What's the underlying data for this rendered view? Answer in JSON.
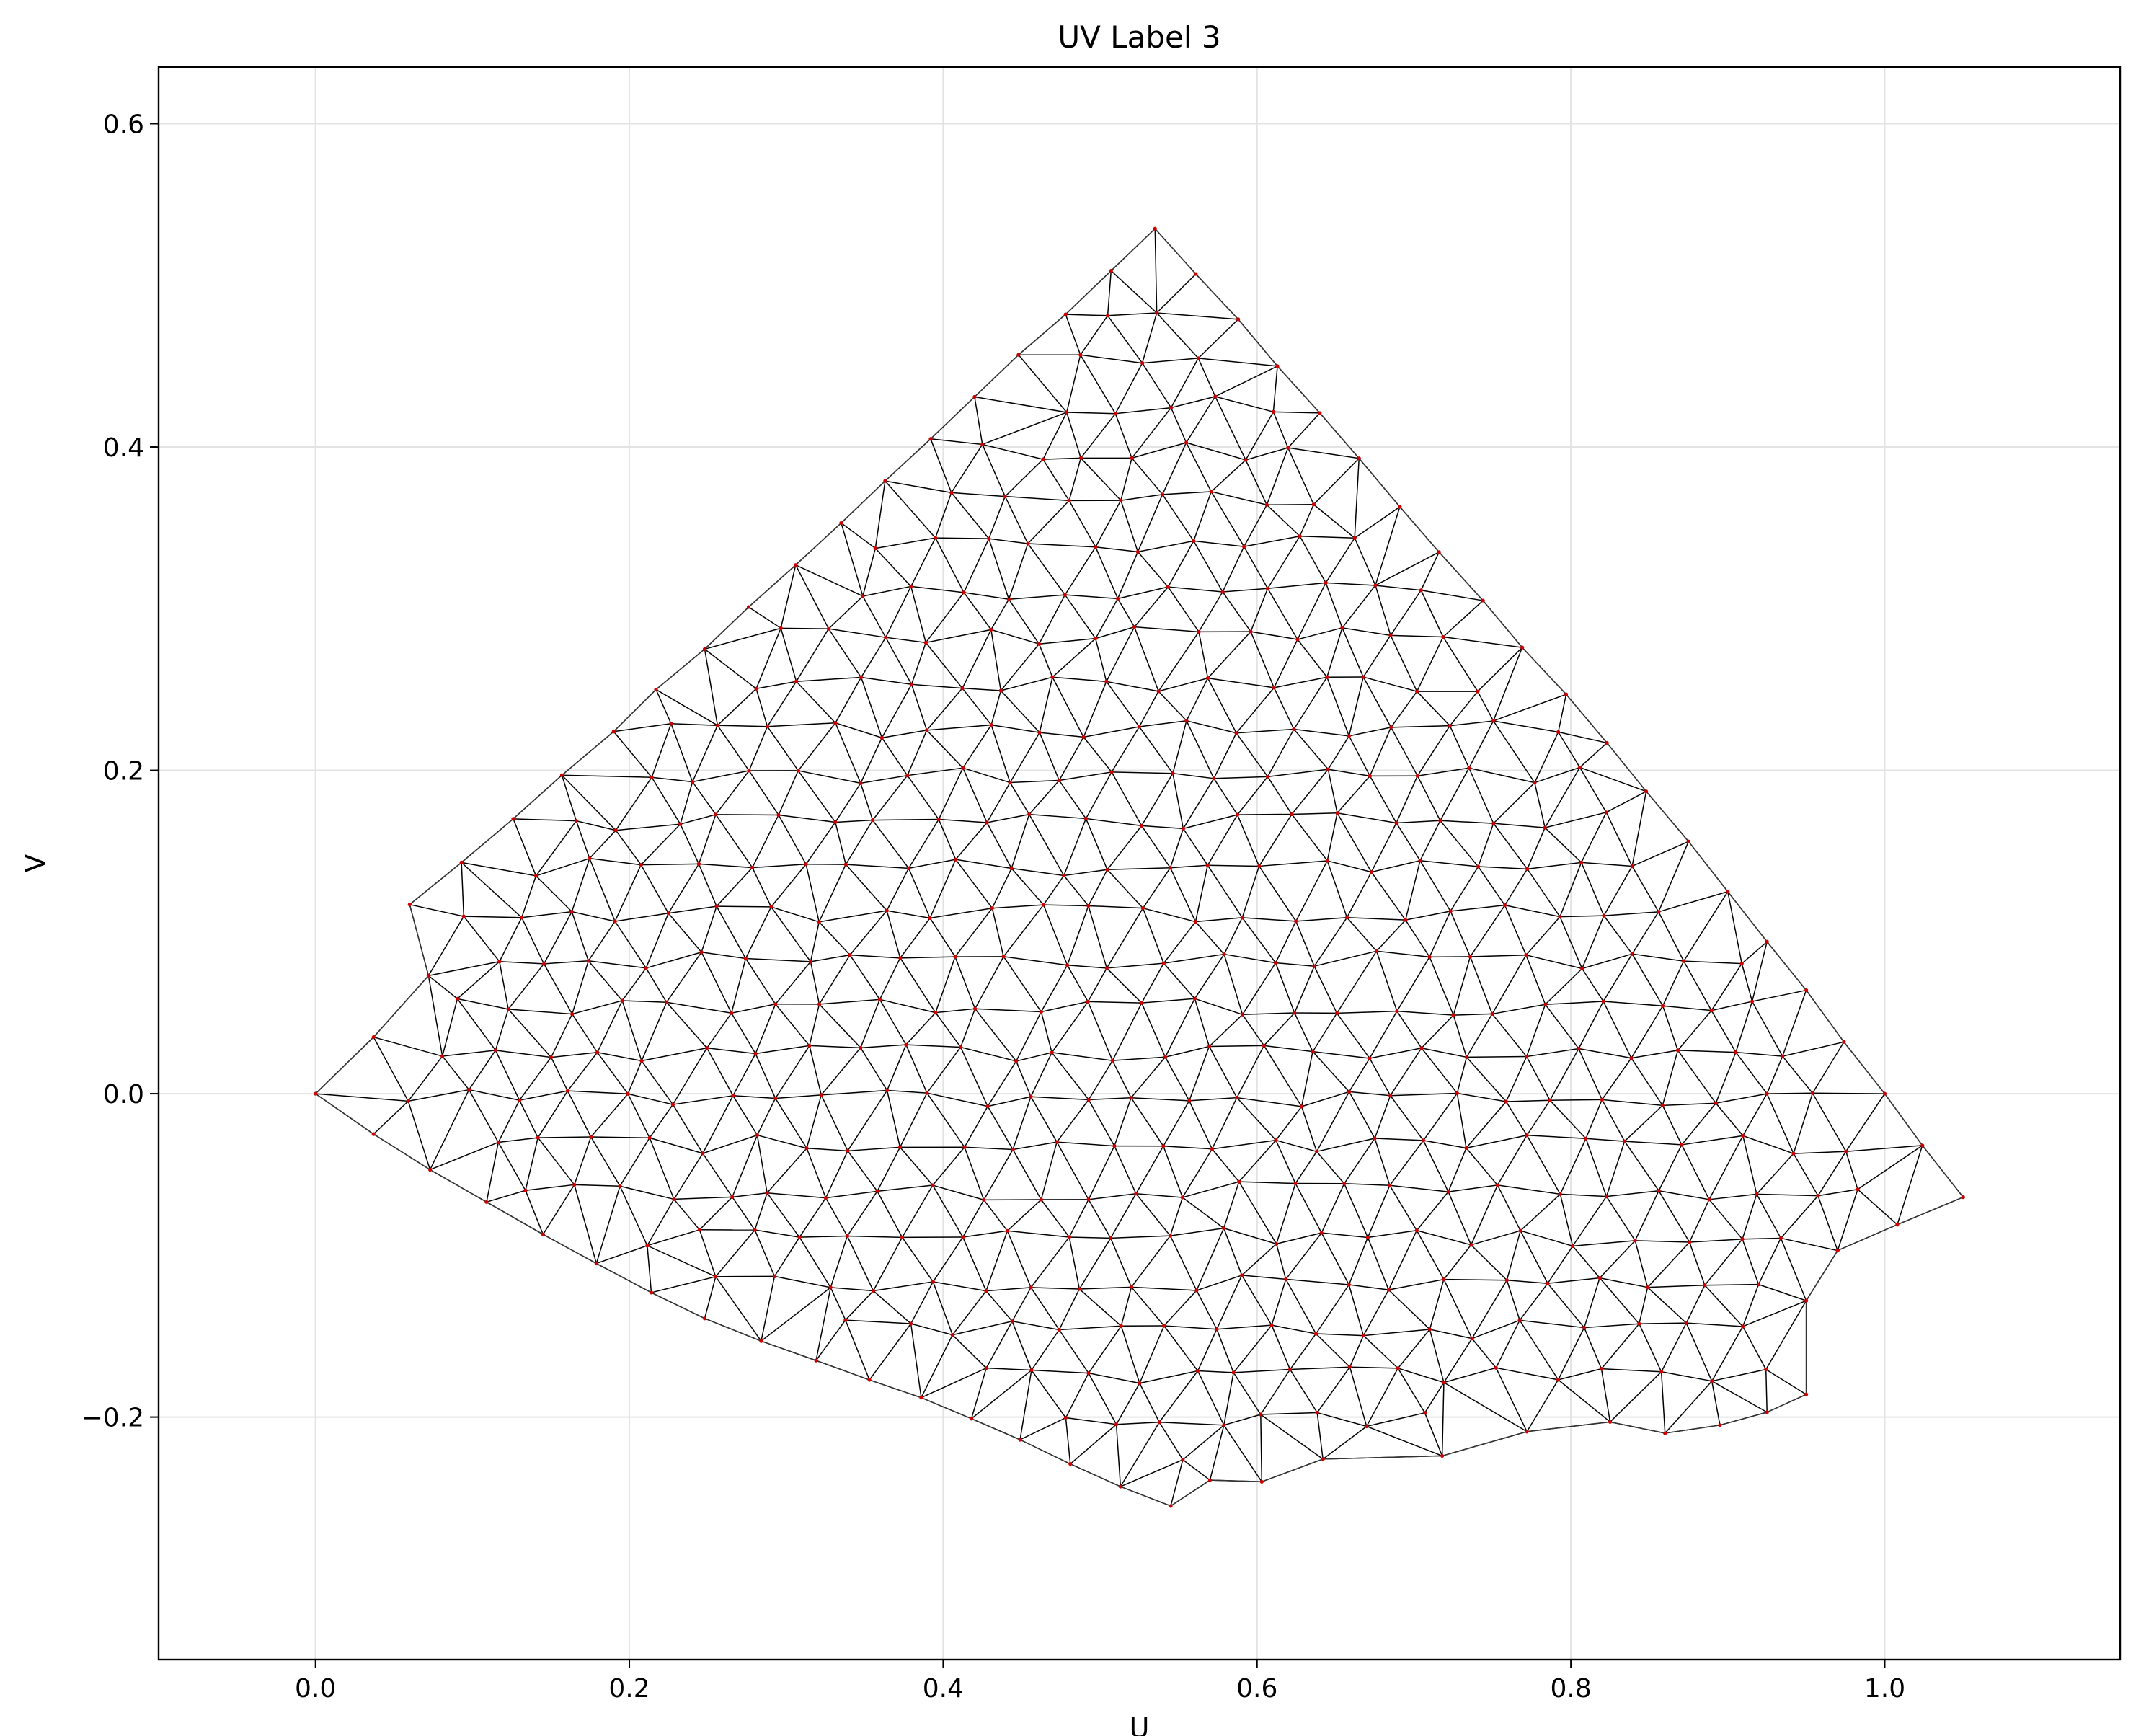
{
  "chart_data": {
    "type": "scatter",
    "title": "UV Label 3",
    "xlabel": "U",
    "ylabel": "V",
    "xlim": [
      -0.1,
      1.15
    ],
    "ylim": [
      -0.35,
      0.635
    ],
    "xticks": [
      0.0,
      0.2,
      0.4,
      0.6,
      0.8,
      1.0
    ],
    "xtick_labels": [
      "0.0",
      "0.2",
      "0.4",
      "0.6",
      "0.8",
      "1.0"
    ],
    "yticks": [
      -0.2,
      0.0,
      0.2,
      0.4,
      0.6
    ],
    "ytick_labels": [
      "−0.2",
      "0.0",
      "0.2",
      "0.4",
      "0.6"
    ],
    "grid": true,
    "colors": {
      "edge": "#000000",
      "vertex": "#cc0000",
      "grid": "#e3e3e3"
    },
    "boundary": [
      [
        0.0,
        0.0
      ],
      [
        0.037,
        0.035
      ],
      [
        0.072,
        0.073
      ],
      [
        0.06,
        0.117
      ],
      [
        0.093,
        0.143
      ],
      [
        0.126,
        0.17
      ],
      [
        0.157,
        0.197
      ],
      [
        0.19,
        0.224
      ],
      [
        0.217,
        0.25
      ],
      [
        0.248,
        0.275
      ],
      [
        0.276,
        0.301
      ],
      [
        0.306,
        0.327
      ],
      [
        0.335,
        0.353
      ],
      [
        0.363,
        0.379
      ],
      [
        0.392,
        0.405
      ],
      [
        0.42,
        0.431
      ],
      [
        0.448,
        0.457
      ],
      [
        0.478,
        0.482
      ],
      [
        0.507,
        0.509
      ],
      [
        0.535,
        0.535
      ],
      [
        0.561,
        0.507
      ],
      [
        0.588,
        0.479
      ],
      [
        0.613,
        0.45
      ],
      [
        0.64,
        0.421
      ],
      [
        0.665,
        0.393
      ],
      [
        0.691,
        0.363
      ],
      [
        0.716,
        0.335
      ],
      [
        0.744,
        0.305
      ],
      [
        0.769,
        0.276
      ],
      [
        0.797,
        0.247
      ],
      [
        0.823,
        0.217
      ],
      [
        0.848,
        0.187
      ],
      [
        0.875,
        0.156
      ],
      [
        0.9,
        0.125
      ],
      [
        0.925,
        0.094
      ],
      [
        0.95,
        0.064
      ],
      [
        0.974,
        0.032
      ],
      [
        1.0,
        0.0
      ],
      [
        1.024,
        -0.032
      ],
      [
        1.05,
        -0.064
      ],
      [
        1.008,
        -0.081
      ],
      [
        0.97,
        -0.097
      ],
      [
        0.95,
        -0.128
      ],
      [
        0.95,
        -0.186
      ],
      [
        0.925,
        -0.197
      ],
      [
        0.895,
        -0.205
      ],
      [
        0.86,
        -0.21
      ],
      [
        0.825,
        -0.203
      ],
      [
        0.772,
        -0.209
      ],
      [
        0.718,
        -0.224
      ],
      [
        0.642,
        -0.226
      ],
      [
        0.603,
        -0.24
      ],
      [
        0.57,
        -0.239
      ],
      [
        0.545,
        -0.255
      ],
      [
        0.513,
        -0.243
      ],
      [
        0.481,
        -0.229
      ],
      [
        0.449,
        -0.214
      ],
      [
        0.418,
        -0.201
      ],
      [
        0.386,
        -0.188
      ],
      [
        0.353,
        -0.177
      ],
      [
        0.319,
        -0.165
      ],
      [
        0.284,
        -0.153
      ],
      [
        0.248,
        -0.139
      ],
      [
        0.214,
        -0.123
      ],
      [
        0.179,
        -0.105
      ],
      [
        0.145,
        -0.087
      ],
      [
        0.109,
        -0.067
      ],
      [
        0.073,
        -0.047
      ],
      [
        0.037,
        -0.025
      ]
    ]
  }
}
